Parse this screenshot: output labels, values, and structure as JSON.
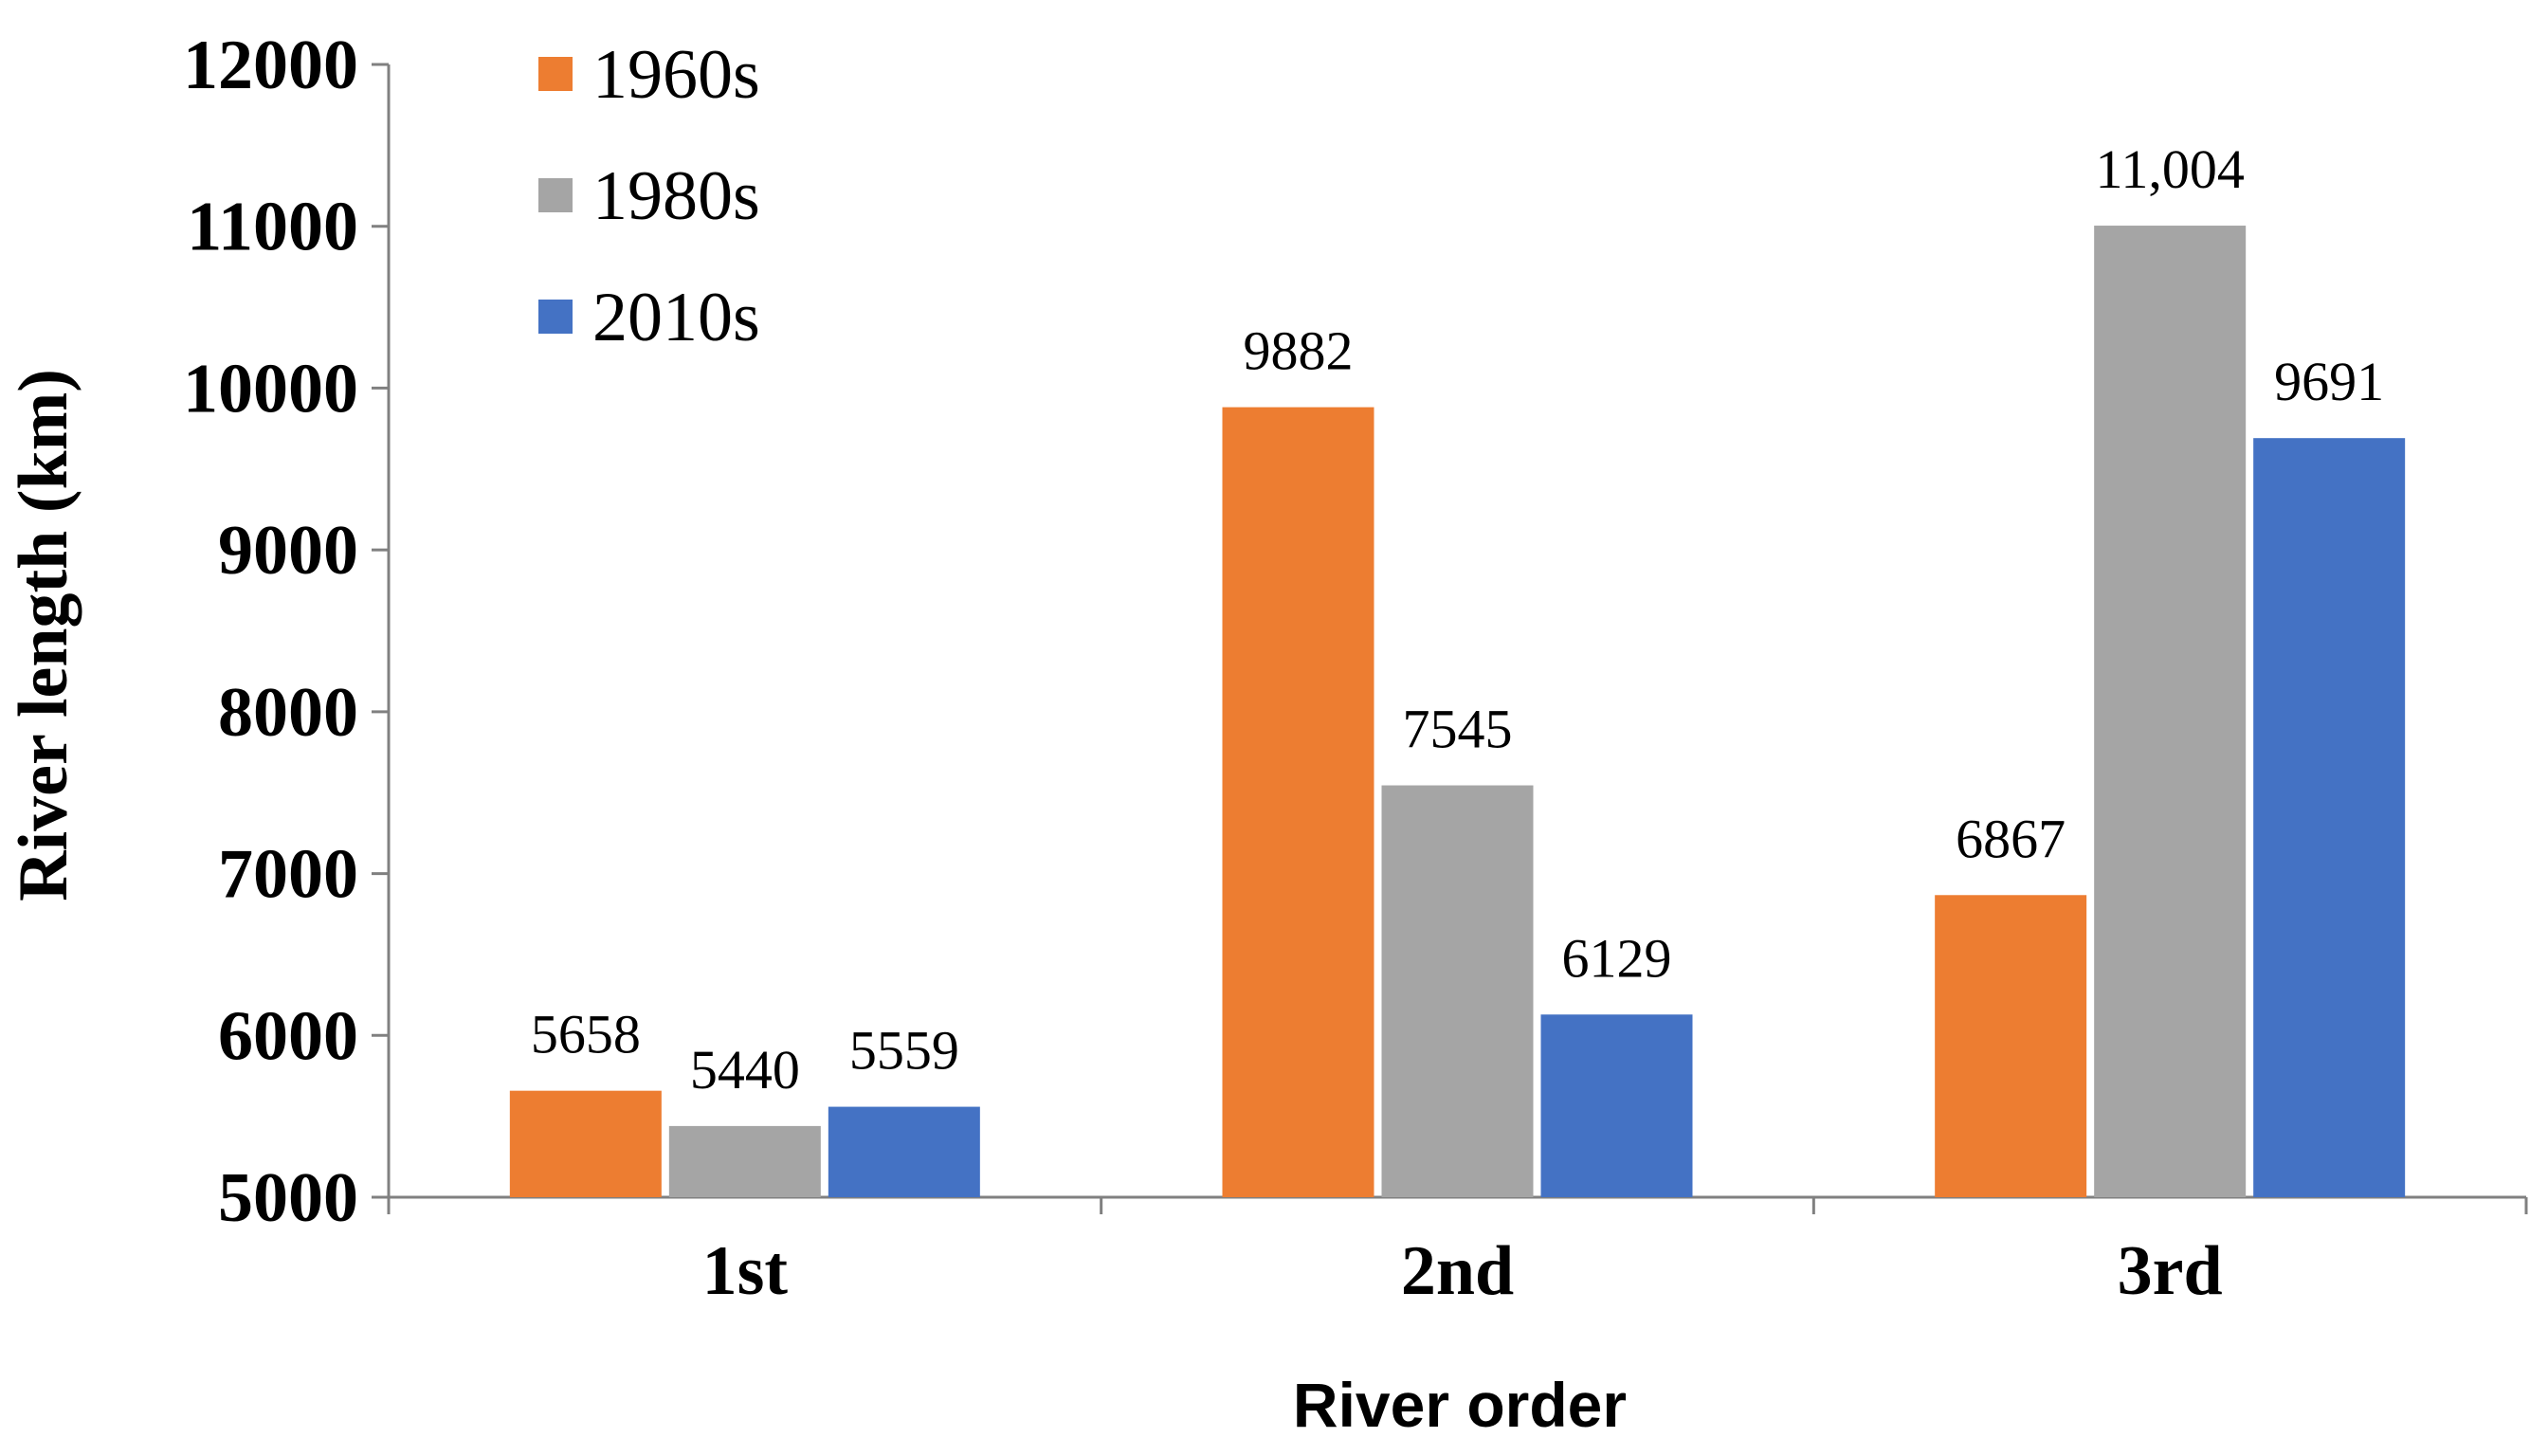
{
  "chart_data": {
    "type": "bar",
    "categories": [
      "1st",
      "2nd",
      "3rd"
    ],
    "series": [
      {
        "name": "1960s",
        "color": "#ED7D31",
        "values": [
          5658,
          9882,
          6867
        ],
        "labels": [
          "5658",
          "9882",
          "6867"
        ]
      },
      {
        "name": "1980s",
        "color": "#A5A5A5",
        "values": [
          5440,
          7545,
          11004
        ],
        "labels": [
          "5440",
          "7545",
          "11,004"
        ]
      },
      {
        "name": "2010s",
        "color": "#4472C4",
        "values": [
          5559,
          6129,
          9691
        ],
        "labels": [
          "5559",
          "6129",
          "9691"
        ]
      }
    ],
    "title": "",
    "xlabel": "River order",
    "ylabel": "River length (km)",
    "ylim": [
      5000,
      12000
    ],
    "yticks": [
      "5000",
      "6000",
      "7000",
      "8000",
      "9000",
      "10000",
      "11000",
      "12000"
    ],
    "grid": false,
    "legend_position": "top-left"
  }
}
